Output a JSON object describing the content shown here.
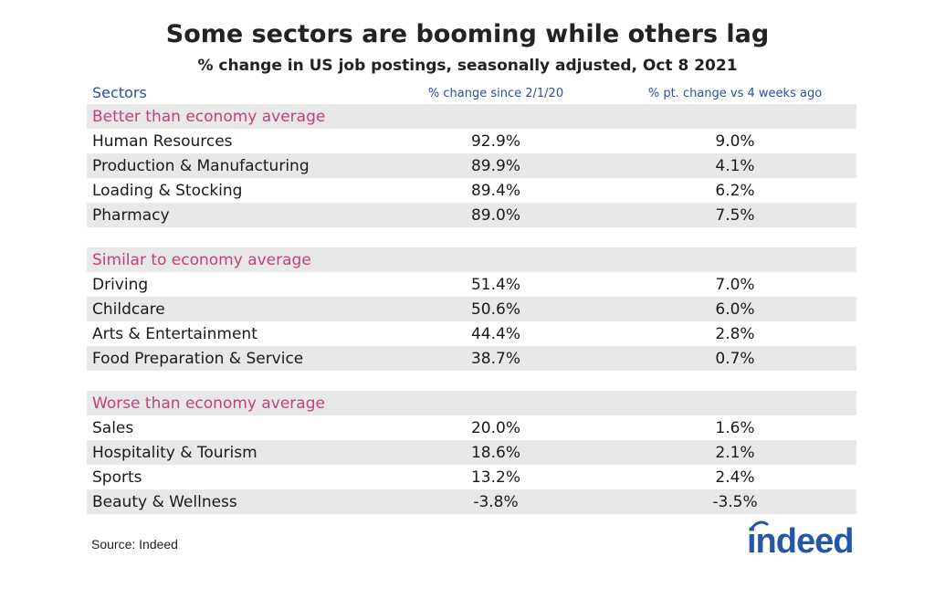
{
  "chart_data": {
    "type": "table",
    "title": "Some sectors are booming while others lag",
    "subtitle": "% change in US job postings, seasonally adjusted, Oct 8 2021",
    "columns": [
      "Sectors",
      "% change since 2/1/20",
      "% pt. change vs 4 weeks ago"
    ],
    "groups": [
      {
        "label": "Better than economy average",
        "rows": [
          {
            "sector": "Human Resources",
            "change": "92.9%",
            "pt_change": "9.0%"
          },
          {
            "sector": "Production & Manufacturing",
            "change": "89.9%",
            "pt_change": "4.1%"
          },
          {
            "sector": "Loading & Stocking",
            "change": "89.4%",
            "pt_change": "6.2%"
          },
          {
            "sector": "Pharmacy",
            "change": "89.0%",
            "pt_change": "7.5%"
          }
        ]
      },
      {
        "label": "Similar to economy average",
        "rows": [
          {
            "sector": "Driving",
            "change": "51.4%",
            "pt_change": "7.0%"
          },
          {
            "sector": "Childcare",
            "change": "50.6%",
            "pt_change": "6.0%"
          },
          {
            "sector": "Arts & Entertainment",
            "change": "44.4%",
            "pt_change": "2.8%"
          },
          {
            "sector": "Food Preparation & Service",
            "change": "38.7%",
            "pt_change": "0.7%"
          }
        ]
      },
      {
        "label": "Worse than economy average",
        "rows": [
          {
            "sector": "Sales",
            "change": "20.0%",
            "pt_change": "1.6%"
          },
          {
            "sector": "Hospitality & Tourism",
            "change": "18.6%",
            "pt_change": "2.1%"
          },
          {
            "sector": "Sports",
            "change": "13.2%",
            "pt_change": "2.4%"
          },
          {
            "sector": "Beauty & Wellness",
            "change": "-3.8%",
            "pt_change": "-3.5%"
          }
        ]
      }
    ],
    "source": "Source: Indeed",
    "logo": "indeed"
  },
  "colors": {
    "header_text": "#2b4fa2",
    "group_label": "#c2407e",
    "row_shade": "#e8e8e8",
    "logo": "#2557a7"
  }
}
